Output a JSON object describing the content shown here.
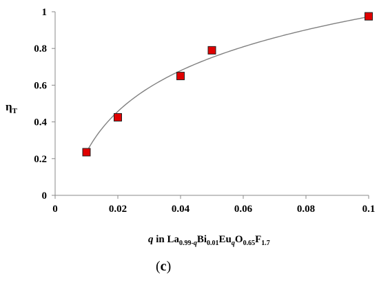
{
  "chart_data": {
    "type": "scatter",
    "x_ticks": [
      "0",
      "0.02",
      "0.04",
      "0.06",
      "0.08",
      "0.1"
    ],
    "y_ticks": [
      "0",
      "0.2",
      "0.4",
      "0.6",
      "0.8",
      "1"
    ],
    "xlim": [
      0,
      0.1
    ],
    "ylim": [
      0,
      1
    ],
    "grid": false,
    "ylabel": {
      "main": "η",
      "sub": "T"
    },
    "xlabel": {
      "q1": "q",
      "t1": " in La",
      "s1": "0.99-",
      "s1q": "q",
      "t2": "Bi",
      "s2": "0.01",
      "t3": "Eu",
      "s3q": "q",
      "t4": "O",
      "s4": "0.65",
      "t5": "F",
      "s5": "1.7"
    },
    "series": [
      {
        "x": [
          0.01,
          0.02,
          0.04,
          0.05,
          0.1
        ],
        "y": [
          0.235,
          0.425,
          0.65,
          0.79,
          0.975
        ],
        "marker_color": "#e00000",
        "marker_edge": "#222222",
        "marker": "square"
      }
    ],
    "fit_curve": {
      "type": "logarithmic",
      "a": 0.3203,
      "b": 1.7101,
      "color": "#808080"
    },
    "caption": {
      "open": "(",
      "letter": "c",
      "close": ")"
    }
  }
}
